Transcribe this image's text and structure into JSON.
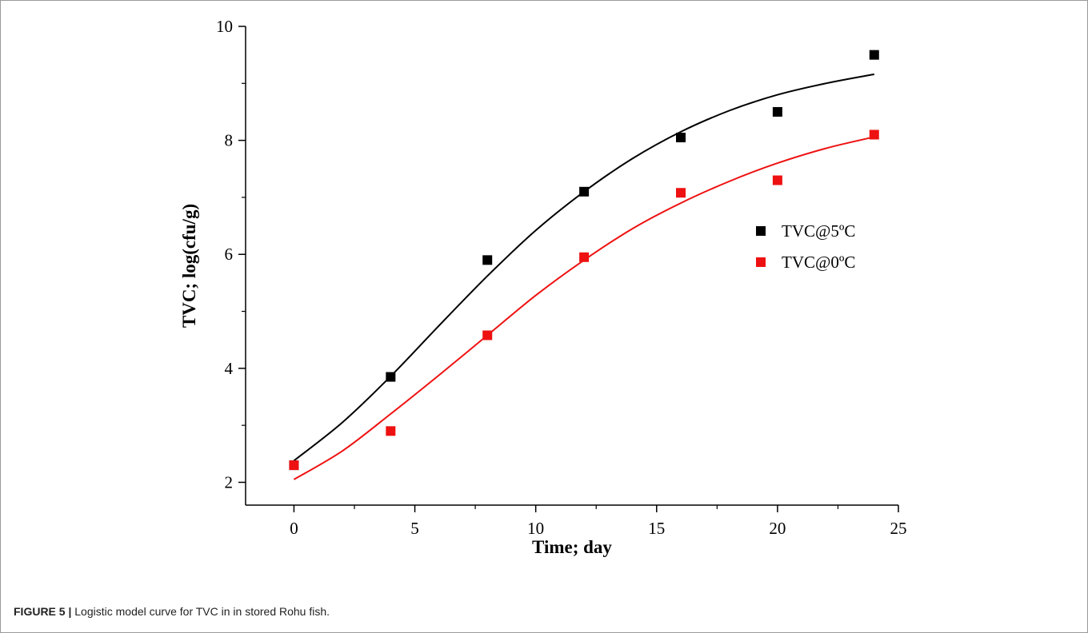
{
  "caption": {
    "label": "FIGURE 5 |",
    "text": " Logistic model curve for TVC in in stored Rohu fish."
  },
  "colors": {
    "series_5C": "#000000",
    "series_0C": "#ee1111"
  },
  "chart_data": {
    "type": "scatter",
    "xlabel": "Time; day",
    "ylabel": "TVC; log(cfu/g)",
    "xlim": [
      -2,
      25
    ],
    "ylim": [
      1.6,
      10
    ],
    "xticks": [
      0,
      5,
      10,
      15,
      20,
      25
    ],
    "yticks": [
      2,
      4,
      6,
      8,
      10
    ],
    "grid": false,
    "legend_position": "right",
    "series": [
      {
        "name": "TVC@5ºC",
        "color": "#000000",
        "marker": "square",
        "x": [
          0,
          4,
          8,
          12,
          16,
          20,
          24
        ],
        "y": [
          2.3,
          3.85,
          5.9,
          7.1,
          8.05,
          8.5,
          9.5
        ],
        "fit": {
          "model": "logistic",
          "x": [
            0,
            2,
            4,
            6,
            8,
            10,
            12,
            14,
            16,
            18,
            20,
            22,
            24
          ],
          "y": [
            2.38,
            3.05,
            3.86,
            4.75,
            5.62,
            6.42,
            7.1,
            7.68,
            8.15,
            8.52,
            8.8,
            9.0,
            9.16
          ]
        }
      },
      {
        "name": "TVC@0ºC",
        "color": "#ee1111",
        "marker": "square",
        "x": [
          0,
          4,
          8,
          12,
          16,
          20,
          24
        ],
        "y": [
          2.3,
          2.9,
          4.58,
          5.95,
          7.08,
          7.3,
          8.1
        ],
        "fit": {
          "model": "logistic",
          "x": [
            0,
            2,
            4,
            6,
            8,
            10,
            12,
            14,
            16,
            18,
            20,
            22,
            24
          ],
          "y": [
            2.05,
            2.55,
            3.2,
            3.88,
            4.58,
            5.28,
            5.9,
            6.45,
            6.9,
            7.28,
            7.6,
            7.86,
            8.06
          ]
        }
      }
    ]
  }
}
